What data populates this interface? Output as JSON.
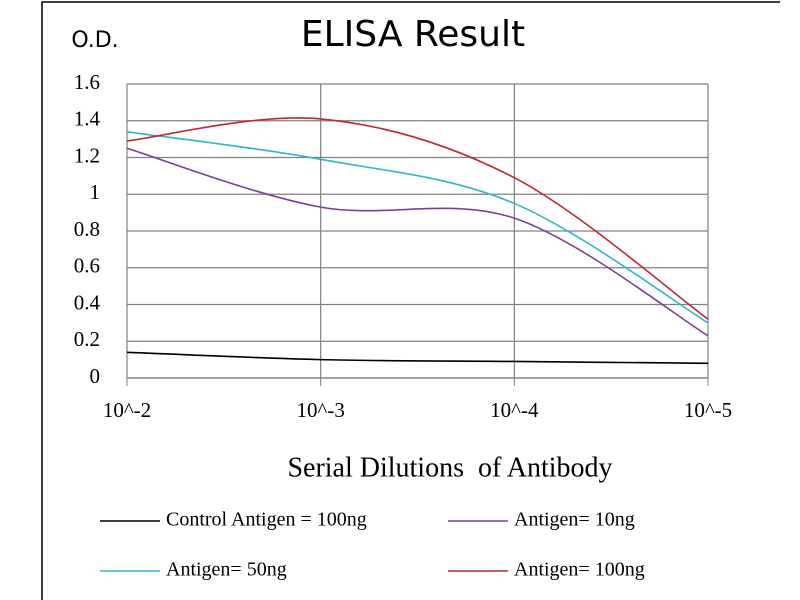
{
  "chart_data": {
    "type": "line",
    "title": "ELISA Result",
    "y_label": "O.D.",
    "x_label": "Serial Dilutions  of Antibody",
    "categories": [
      "10^-2",
      "10^-3",
      "10^-4",
      "10^-5"
    ],
    "series": [
      {
        "name": "Control Antigen = 100ng",
        "color": "#000000",
        "values": [
          0.14,
          0.1,
          0.09,
          0.08
        ]
      },
      {
        "name": "Antigen= 10ng",
        "color": "#7b3f9a",
        "values": [
          1.25,
          0.93,
          0.87,
          0.23
        ]
      },
      {
        "name": "Antigen= 50ng",
        "color": "#2fb5c8",
        "values": [
          1.34,
          1.19,
          0.95,
          0.3
        ]
      },
      {
        "name": "Antigen= 100ng",
        "color": "#c0282d",
        "values": [
          1.29,
          1.41,
          1.09,
          0.32
        ]
      }
    ],
    "ylim": [
      0,
      1.6
    ],
    "yticks": [
      0,
      0.2,
      0.4,
      0.6,
      0.8,
      1,
      1.2,
      1.4,
      1.6
    ],
    "grid": true,
    "smooth": true,
    "legend": "bottom"
  }
}
